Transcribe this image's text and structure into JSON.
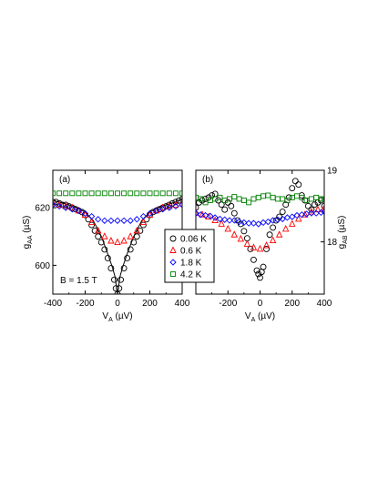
{
  "chart_data": [
    {
      "panel": "a",
      "type": "scatter",
      "panel_label": "(a)",
      "annotation": "B = 1.5 T",
      "xlabel": {
        "main": "V",
        "sub": "A",
        "unit": " (µV)"
      },
      "ylabel": {
        "main": "g",
        "sub": "AA",
        "unit": " (µS)"
      },
      "xlim": [
        -400,
        400
      ],
      "ylim": [
        590,
        633
      ],
      "xticks": [
        -400,
        -200,
        0,
        200,
        400
      ],
      "yticks": [
        600,
        620
      ],
      "series": [
        {
          "name": "0.06 K",
          "marker": "circle",
          "color": "#000000",
          "x": [
            -400,
            -380,
            -360,
            -340,
            -320,
            -300,
            -280,
            -260,
            -240,
            -220,
            -200,
            -180,
            -160,
            -140,
            -120,
            -100,
            -80,
            -60,
            -40,
            -20,
            -10,
            0,
            10,
            20,
            40,
            60,
            80,
            100,
            120,
            140,
            160,
            180,
            200,
            220,
            240,
            260,
            280,
            300,
            320,
            340,
            360,
            380,
            400
          ],
          "y": [
            622,
            622,
            621.5,
            621,
            621,
            620.5,
            620,
            619.5,
            619,
            618.5,
            617.5,
            616,
            614,
            612,
            610,
            608,
            605.5,
            602.5,
            599,
            595,
            592,
            590,
            592,
            595,
            599,
            602.5,
            605.5,
            608,
            610,
            612,
            614,
            616,
            617.5,
            618.5,
            619,
            619.5,
            620,
            620.5,
            621,
            621.5,
            622,
            622.5,
            623
          ]
        },
        {
          "name": "0.6 K",
          "marker": "triangle",
          "color": "#ff0000",
          "x": [
            -400,
            -360,
            -320,
            -280,
            -240,
            -200,
            -160,
            -120,
            -80,
            -40,
            0,
            40,
            80,
            120,
            160,
            200,
            240,
            280,
            320,
            360,
            400
          ],
          "y": [
            621.5,
            621,
            620.5,
            620,
            619,
            617.5,
            615,
            612,
            610,
            608.5,
            608,
            608.5,
            610,
            612,
            615,
            617.5,
            619,
            620,
            620.5,
            621,
            621.5
          ]
        },
        {
          "name": "1.8 K",
          "marker": "diamond",
          "color": "#0000ff",
          "x": [
            -400,
            -360,
            -320,
            -280,
            -240,
            -200,
            -160,
            -120,
            -80,
            -40,
            0,
            40,
            80,
            120,
            160,
            200,
            240,
            280,
            320,
            360,
            400
          ],
          "y": [
            621,
            620.5,
            620,
            619.5,
            619,
            618,
            617,
            616,
            615.5,
            615.5,
            615.5,
            615.5,
            615.5,
            616,
            617,
            618,
            619,
            619.5,
            620,
            620.5,
            621
          ]
        },
        {
          "name": "4.2 K",
          "marker": "square",
          "color": "#008000",
          "x": [
            -400,
            -360,
            -320,
            -280,
            -240,
            -200,
            -160,
            -120,
            -80,
            -40,
            0,
            40,
            80,
            120,
            160,
            200,
            240,
            280,
            320,
            360,
            400
          ],
          "y": [
            625,
            625,
            625,
            625,
            625,
            625,
            625,
            625,
            625,
            625,
            625,
            625,
            625,
            625,
            625,
            625,
            625,
            625,
            625,
            625,
            625
          ]
        }
      ],
      "fit_line": {
        "x": [
          -400,
          -350,
          -300,
          -250,
          -200,
          -150,
          -100,
          -60,
          -30,
          -15,
          0,
          15,
          30,
          60,
          100,
          150,
          200,
          250,
          300,
          350,
          400
        ],
        "y": [
          622.5,
          621.8,
          621,
          620,
          618.5,
          615.5,
          610,
          604,
          599,
          596,
          590,
          596,
          599,
          604,
          610,
          615.5,
          618.5,
          620,
          621,
          621.8,
          623
        ]
      }
    },
    {
      "panel": "b",
      "type": "scatter",
      "panel_label": "(b)",
      "xlabel": {
        "main": "V",
        "sub": "A",
        "unit": " (µV)"
      },
      "ylabel": {
        "main": "g",
        "sub": "AB",
        "unit": " (µS)"
      },
      "xlim": [
        -400,
        400
      ],
      "ylim": [
        17.27,
        19.0
      ],
      "xticks": [
        -200,
        0,
        200,
        400
      ],
      "xtick_labels": [
        "-200",
        "0",
        "200",
        "400"
      ],
      "yticks": [
        18,
        19
      ],
      "series": [
        {
          "name": "0.06 K",
          "marker": "circle",
          "color": "#000000",
          "x": [
            -400,
            -380,
            -360,
            -340,
            -320,
            -300,
            -280,
            -260,
            -240,
            -220,
            -200,
            -180,
            -160,
            -140,
            -120,
            -100,
            -80,
            -60,
            -40,
            -20,
            -10,
            0,
            10,
            20,
            40,
            60,
            80,
            100,
            120,
            140,
            160,
            180,
            200,
            220,
            240,
            260,
            280,
            300,
            320,
            340,
            360,
            380,
            400
          ],
          "y": [
            18.48,
            18.55,
            18.58,
            18.6,
            18.62,
            18.65,
            18.67,
            18.58,
            18.52,
            18.45,
            18.55,
            18.5,
            18.4,
            18.3,
            18.25,
            18.15,
            18.05,
            17.9,
            17.75,
            17.6,
            17.55,
            17.5,
            17.58,
            17.65,
            17.9,
            18.1,
            18.2,
            18.3,
            18.35,
            18.42,
            18.52,
            18.62,
            18.75,
            18.85,
            18.8,
            18.65,
            18.58,
            18.5,
            18.45,
            18.52,
            18.55,
            18.58,
            18.5
          ]
        },
        {
          "name": "0.6 K",
          "marker": "triangle",
          "color": "#ff0000",
          "x": [
            -400,
            -360,
            -320,
            -280,
            -240,
            -200,
            -160,
            -120,
            -80,
            -40,
            0,
            40,
            80,
            120,
            160,
            200,
            240,
            280,
            320,
            360,
            400
          ],
          "y": [
            18.4,
            18.38,
            18.35,
            18.3,
            18.25,
            18.18,
            18.1,
            18.04,
            17.97,
            17.92,
            17.9,
            17.95,
            18.02,
            18.1,
            18.18,
            18.25,
            18.32,
            18.38,
            18.42,
            18.45,
            18.47
          ]
        },
        {
          "name": "1.8 K",
          "marker": "diamond",
          "color": "#0000ff",
          "x": [
            -400,
            -370,
            -340,
            -310,
            -280,
            -250,
            -220,
            -190,
            -160,
            -130,
            -100,
            -70,
            -40,
            -10,
            20,
            50,
            80,
            110,
            140,
            170,
            200,
            230,
            260,
            290,
            320,
            350,
            380,
            400
          ],
          "y": [
            18.4,
            18.38,
            18.37,
            18.36,
            18.34,
            18.32,
            18.31,
            18.3,
            18.3,
            18.28,
            18.27,
            18.26,
            18.26,
            18.25,
            18.27,
            18.28,
            18.3,
            18.31,
            18.32,
            18.34,
            18.35,
            18.37,
            18.38,
            18.39,
            18.4,
            18.4,
            18.41,
            18.42
          ]
        },
        {
          "name": "4.2 K",
          "marker": "square",
          "color": "#008000",
          "x": [
            -400,
            -370,
            -340,
            -310,
            -280,
            -250,
            -220,
            -190,
            -160,
            -130,
            -100,
            -70,
            -40,
            -10,
            20,
            50,
            80,
            110,
            140,
            170,
            200,
            230,
            260,
            290,
            320,
            350,
            380,
            400
          ],
          "y": [
            18.62,
            18.6,
            18.55,
            18.58,
            18.6,
            18.62,
            18.58,
            18.6,
            18.63,
            18.6,
            18.58,
            18.55,
            18.6,
            18.62,
            18.64,
            18.65,
            18.62,
            18.6,
            18.6,
            18.58,
            18.62,
            18.64,
            18.62,
            18.58,
            18.6,
            18.62,
            18.6,
            18.6
          ]
        }
      ]
    }
  ],
  "legend": [
    {
      "label": "0.06 K",
      "marker": "circle",
      "color": "#000000"
    },
    {
      "label": "0.6 K",
      "marker": "triangle",
      "color": "#ff0000"
    },
    {
      "label": "1.8 K",
      "marker": "diamond",
      "color": "#0000ff"
    },
    {
      "label": "4.2 K",
      "marker": "square",
      "color": "#008000"
    }
  ]
}
